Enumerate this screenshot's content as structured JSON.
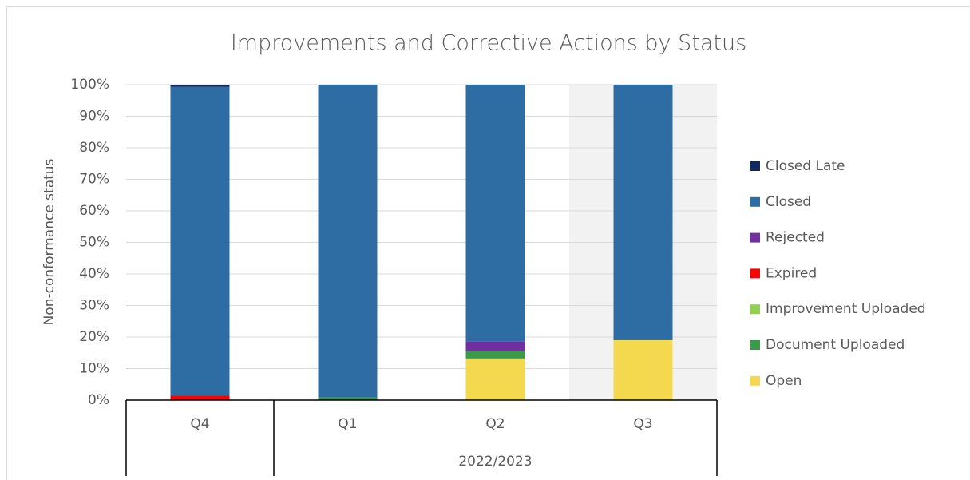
{
  "chart_data": {
    "type": "stacked_bar",
    "title": "Improvements and Corrective Actions by Status",
    "y_label": "Non-conformance status",
    "categories": [
      "Q4",
      "Q1",
      "Q2",
      "Q3"
    ],
    "category_groups": [
      {
        "label": "2022/2023",
        "start": 1,
        "end": 3
      }
    ],
    "shaded_category_index": 3,
    "series": [
      {
        "name": "Open",
        "color": "#f4d94e",
        "values": [
          0,
          0,
          13.2,
          19
        ]
      },
      {
        "name": "Document Uploaded",
        "color": "#3a9a47",
        "values": [
          0,
          0.8,
          2.5,
          0
        ]
      },
      {
        "name": "Improvement Uploaded",
        "color": "#92d050",
        "values": [
          0,
          0,
          0,
          0
        ]
      },
      {
        "name": "Expired",
        "color": "#ff0000",
        "values": [
          1.5,
          0,
          0,
          0
        ]
      },
      {
        "name": "Rejected",
        "color": "#7030a0",
        "values": [
          0,
          0,
          2.8,
          0
        ]
      },
      {
        "name": "Closed",
        "color": "#2e6da4",
        "values": [
          97.8,
          99.2,
          81.5,
          81
        ]
      },
      {
        "name": "Closed Late",
        "color": "#0e2a5c",
        "values": [
          0.7,
          0,
          0,
          0
        ]
      }
    ],
    "ylim": [
      0,
      100
    ],
    "yticks": [
      {
        "value": 0,
        "label": "0%"
      },
      {
        "value": 10,
        "label": "10%"
      },
      {
        "value": 20,
        "label": "20%"
      },
      {
        "value": 30,
        "label": "30%"
      },
      {
        "value": 40,
        "label": "40%"
      },
      {
        "value": 50,
        "label": "50%"
      },
      {
        "value": 60,
        "label": "60%"
      },
      {
        "value": 70,
        "label": "70%"
      },
      {
        "value": 80,
        "label": "80%"
      },
      {
        "value": 90,
        "label": "90%"
      },
      {
        "value": 100,
        "label": "100%"
      }
    ],
    "grid": true,
    "legend": "right"
  }
}
